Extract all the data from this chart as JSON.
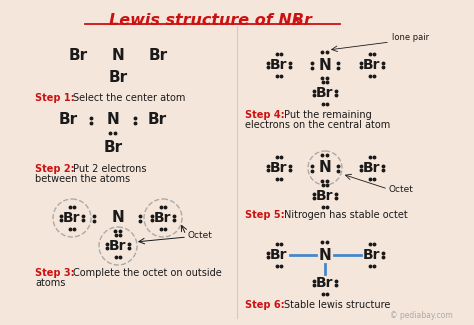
{
  "bg_color": "#f5e6dc",
  "red_color": "#cc1111",
  "blue_color": "#4488cc",
  "black_color": "#1a1a1a",
  "gray_color": "#999999",
  "title": "Lewis structure of NBr",
  "title_sub": "3",
  "watermark": "© pediabay.com"
}
